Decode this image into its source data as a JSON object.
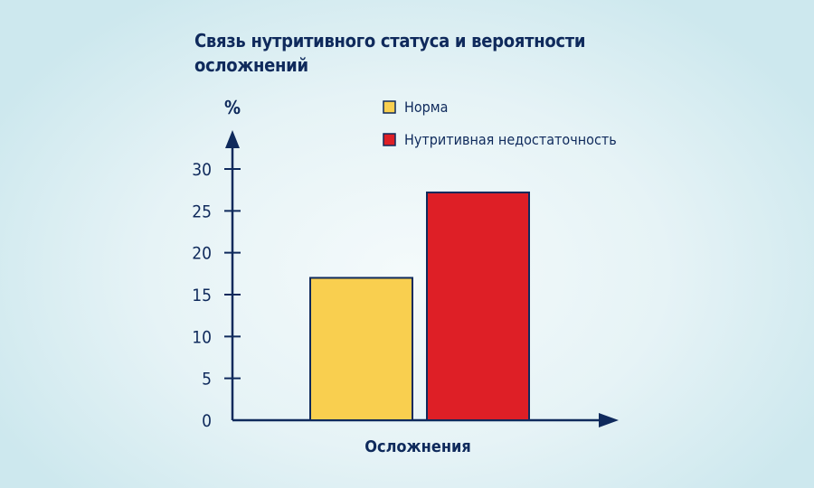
{
  "chart_data": {
    "type": "bar",
    "title": "Связь нутритивного статуса и вероятности осложнений",
    "ylabel": "%",
    "xlabel": "Осложнения",
    "ylim": [
      0,
      30
    ],
    "yticks": [
      0,
      5,
      10,
      15,
      20,
      25,
      30
    ],
    "categories": [
      "Осложнения"
    ],
    "series": [
      {
        "name": "Норма",
        "values": [
          17
        ],
        "color": "#f9cf4f"
      },
      {
        "name": "Нутритивная недостаточность",
        "values": [
          27.2
        ],
        "color": "#de1f26"
      }
    ],
    "axis_color": "#0f2a5c",
    "legend_position": "top-right",
    "grid": false
  }
}
